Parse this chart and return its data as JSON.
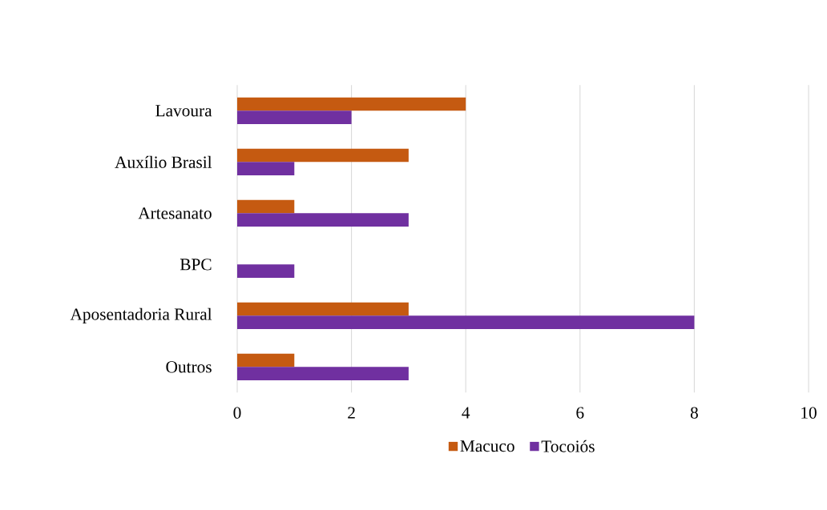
{
  "chart_data": {
    "type": "bar",
    "orientation": "horizontal",
    "categories": [
      "Lavoura",
      "Auxílio Brasil",
      "Artesanato",
      "BPC",
      "Aposentadoria Rural",
      "Outros"
    ],
    "series": [
      {
        "name": "Macuco",
        "color": "#c55a11",
        "values": [
          4,
          3,
          1,
          0,
          3,
          1
        ]
      },
      {
        "name": "Tocoiós",
        "color": "#7030a0",
        "values": [
          2,
          1,
          3,
          1,
          8,
          3
        ]
      }
    ],
    "xlim": [
      0,
      10
    ],
    "xticks": [
      0,
      2,
      4,
      6,
      8,
      10
    ],
    "grid": "x",
    "legend": "bottom"
  }
}
